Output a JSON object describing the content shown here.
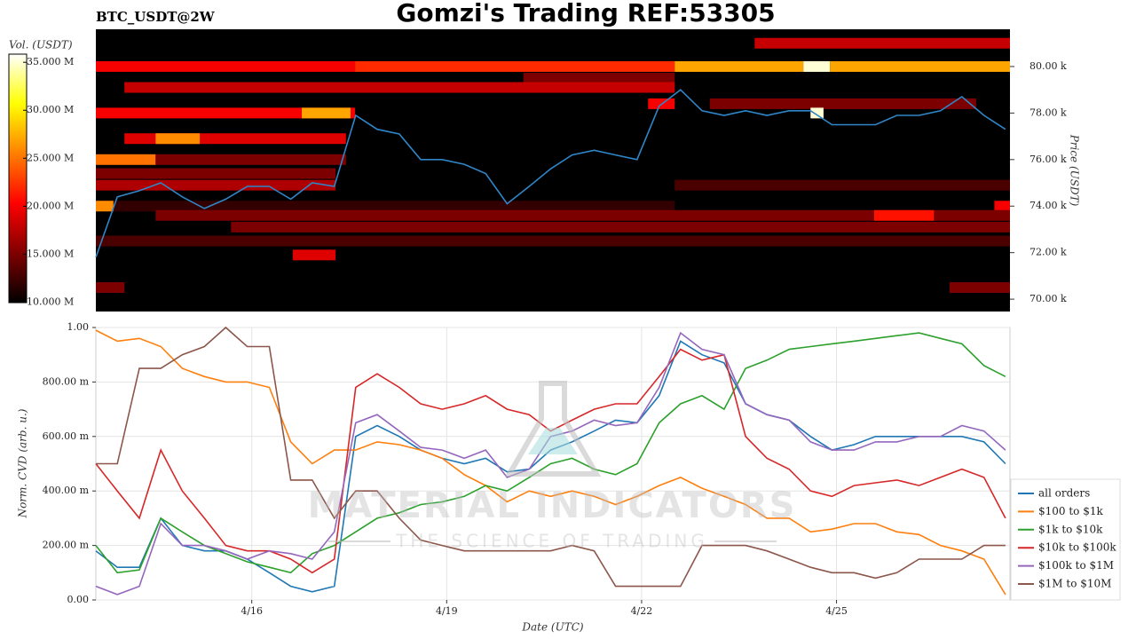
{
  "title": "Gomzi's Trading REF:53305",
  "watermark": {
    "title": "MATERIAL INDICATORS",
    "subtitle": "THE SCIENCE OF TRADING"
  },
  "chart_data": [
    {
      "type": "heatmap",
      "subtitle": "BTC_USDT@2W",
      "colorbar_label": "Vol. (USDT)",
      "ylabel": "Price (USDT)",
      "clim": [
        9950000,
        35850000
      ],
      "cticks": [
        {
          "value": 10000000,
          "label": "10.000 M"
        },
        {
          "value": 15000000,
          "label": "15.000 M"
        },
        {
          "value": 20000000,
          "label": "20.000 M"
        },
        {
          "value": 25000000,
          "label": "25.000 M"
        },
        {
          "value": 30000000,
          "label": "30.000 M"
        },
        {
          "value": 35000000,
          "label": "35.000 M"
        }
      ],
      "ylim": [
        69470,
        81600
      ],
      "yticks": [
        {
          "value": 70000,
          "label": "70.00 k"
        },
        {
          "value": 72000,
          "label": "72.00 k"
        },
        {
          "value": 74000,
          "label": "74.00 k"
        },
        {
          "value": 76000,
          "label": "76.00 k"
        },
        {
          "value": 78000,
          "label": "78.00 k"
        },
        {
          "value": 80000,
          "label": "80.00 k"
        }
      ],
      "xlim": [
        13.6,
        27.67
      ],
      "bands": [
        {
          "price": 80000,
          "x0": 13.6,
          "x1": 17.59,
          "value": 20000000
        },
        {
          "price": 80000,
          "x0": 17.59,
          "x1": 22.51,
          "value": 22000000
        },
        {
          "price": 80000,
          "x0": 22.51,
          "x1": 24.49,
          "value": 27000000
        },
        {
          "price": 80000,
          "x0": 24.49,
          "x1": 24.9,
          "value": 35000000
        },
        {
          "price": 80000,
          "x0": 24.9,
          "x1": 27.67,
          "value": 27000000
        },
        {
          "price": 81000,
          "x0": 23.74,
          "x1": 27.67,
          "value": 18000000
        },
        {
          "price": 79500,
          "x0": 20.18,
          "x1": 22.51,
          "value": 15000000
        },
        {
          "price": 79100,
          "x0": 14.04,
          "x1": 22.51,
          "value": 18000000
        },
        {
          "price": 78400,
          "x0": 22.1,
          "x1": 22.51,
          "value": 20000000
        },
        {
          "price": 78400,
          "x0": 23.05,
          "x1": 27.15,
          "value": 15000000
        },
        {
          "price": 78000,
          "x0": 13.6,
          "x1": 17.59,
          "value": 20000000
        },
        {
          "price": 78000,
          "x0": 16.77,
          "x1": 17.52,
          "value": 27000000
        },
        {
          "price": 78000,
          "x0": 24.6,
          "x1": 24.8,
          "value": 35000000
        },
        {
          "price": 76900,
          "x0": 14.04,
          "x1": 17.45,
          "value": 19000000
        },
        {
          "price": 76900,
          "x0": 14.52,
          "x1": 15.2,
          "value": 26000000
        },
        {
          "price": 76000,
          "x0": 13.6,
          "x1": 14.52,
          "value": 25000000
        },
        {
          "price": 76000,
          "x0": 14.52,
          "x1": 17.45,
          "value": 15000000
        },
        {
          "price": 75400,
          "x0": 13.6,
          "x1": 17.29,
          "value": 15000000
        },
        {
          "price": 74900,
          "x0": 13.6,
          "x1": 17.29,
          "value": 17000000
        },
        {
          "price": 74900,
          "x0": 22.51,
          "x1": 27.67,
          "value": 13000000
        },
        {
          "price": 74000,
          "x0": 13.6,
          "x1": 22.51,
          "value": 12000000
        },
        {
          "price": 74000,
          "x0": 13.6,
          "x1": 13.87,
          "value": 26000000
        },
        {
          "price": 74000,
          "x0": 27.43,
          "x1": 27.67,
          "value": 20000000
        },
        {
          "price": 73600,
          "x0": 14.52,
          "x1": 27.67,
          "value": 15000000
        },
        {
          "price": 73600,
          "x0": 25.58,
          "x1": 26.5,
          "value": 21000000
        },
        {
          "price": 73100,
          "x0": 15.68,
          "x1": 27.67,
          "value": 15000000
        },
        {
          "price": 72500,
          "x0": 13.6,
          "x1": 27.67,
          "value": 13000000
        },
        {
          "price": 71900,
          "x0": 16.63,
          "x1": 17.29,
          "value": 19000000
        },
        {
          "price": 70500,
          "x0": 13.6,
          "x1": 14.04,
          "value": 15000000
        },
        {
          "price": 70500,
          "x0": 26.74,
          "x1": 27.67,
          "value": 15000000
        }
      ],
      "line": {
        "color": "#2f86c8",
        "x": [
          13.6,
          13.93,
          14.27,
          14.6,
          14.93,
          15.27,
          15.6,
          15.93,
          16.27,
          16.6,
          16.93,
          17.27,
          17.6,
          17.93,
          18.27,
          18.6,
          18.93,
          19.27,
          19.6,
          19.93,
          20.27,
          20.6,
          20.93,
          21.27,
          21.6,
          21.93,
          22.27,
          22.6,
          22.93,
          23.27,
          23.6,
          23.93,
          24.27,
          24.6,
          24.93,
          25.27,
          25.6,
          25.93,
          26.27,
          26.6,
          26.93,
          27.27,
          27.6
        ],
        "values": [
          71800,
          74400,
          74660,
          75000,
          74400,
          73900,
          74300,
          74850,
          74850,
          74300,
          75000,
          74850,
          77900,
          77300,
          77100,
          76000,
          76000,
          75800,
          75400,
          74100,
          74850,
          75600,
          76200,
          76400,
          76200,
          76000,
          78300,
          79000,
          78100,
          77900,
          78100,
          77900,
          78100,
          78100,
          77500,
          77500,
          77500,
          77900,
          77900,
          78100,
          78700,
          77900,
          77300
        ]
      }
    },
    {
      "type": "line",
      "ylabel": "Norm. CVD (arb. u.)",
      "xlabel": "Date (UTC)",
      "grid": true,
      "legend": "right",
      "xlim": [
        13.6,
        27.67
      ],
      "xticks": [
        {
          "value": 16,
          "label": "4/16"
        },
        {
          "value": 19,
          "label": "4/19"
        },
        {
          "value": 22,
          "label": "4/22"
        },
        {
          "value": 25,
          "label": "4/25"
        }
      ],
      "ylim": [
        0,
        1
      ],
      "yticks": [
        {
          "value": 0,
          "label": "0.00"
        },
        {
          "value": 0.2,
          "label": "200.00 m"
        },
        {
          "value": 0.4,
          "label": "400.00 m"
        },
        {
          "value": 0.6,
          "label": "600.00 m"
        },
        {
          "value": 0.8,
          "label": "800.00 m"
        },
        {
          "value": 1,
          "label": "1.00"
        }
      ],
      "x": [
        13.6,
        13.93,
        14.27,
        14.6,
        14.93,
        15.27,
        15.6,
        15.93,
        16.27,
        16.6,
        16.93,
        17.27,
        17.6,
        17.93,
        18.27,
        18.6,
        18.93,
        19.27,
        19.6,
        19.93,
        20.27,
        20.6,
        20.93,
        21.27,
        21.6,
        21.93,
        22.27,
        22.6,
        22.93,
        23.27,
        23.6,
        23.93,
        24.27,
        24.6,
        24.93,
        25.27,
        25.6,
        25.93,
        26.27,
        26.6,
        26.93,
        27.27,
        27.6
      ],
      "series": [
        {
          "name": "all orders",
          "color": "#1f77b4",
          "values": [
            0.18,
            0.12,
            0.12,
            0.3,
            0.2,
            0.18,
            0.18,
            0.15,
            0.1,
            0.05,
            0.03,
            0.05,
            0.6,
            0.64,
            0.6,
            0.55,
            0.52,
            0.5,
            0.52,
            0.47,
            0.48,
            0.55,
            0.58,
            0.62,
            0.66,
            0.65,
            0.75,
            0.95,
            0.9,
            0.87,
            0.72,
            0.68,
            0.66,
            0.6,
            0.55,
            0.57,
            0.6,
            0.6,
            0.6,
            0.6,
            0.6,
            0.58,
            0.5
          ]
        },
        {
          "name": "$100 to $1k",
          "color": "#ff7f0e",
          "values": [
            0.99,
            0.95,
            0.96,
            0.93,
            0.85,
            0.82,
            0.8,
            0.8,
            0.78,
            0.58,
            0.5,
            0.55,
            0.55,
            0.58,
            0.57,
            0.55,
            0.52,
            0.46,
            0.42,
            0.36,
            0.4,
            0.38,
            0.4,
            0.38,
            0.35,
            0.38,
            0.42,
            0.45,
            0.41,
            0.38,
            0.35,
            0.3,
            0.3,
            0.25,
            0.26,
            0.28,
            0.28,
            0.25,
            0.24,
            0.2,
            0.18,
            0.15,
            0.02
          ]
        },
        {
          "name": "$1k to $10k",
          "color": "#2ca02c",
          "values": [
            0.2,
            0.1,
            0.11,
            0.3,
            0.25,
            0.2,
            0.17,
            0.14,
            0.12,
            0.1,
            0.17,
            0.2,
            0.25,
            0.3,
            0.32,
            0.35,
            0.36,
            0.38,
            0.42,
            0.4,
            0.45,
            0.5,
            0.52,
            0.48,
            0.46,
            0.5,
            0.65,
            0.72,
            0.75,
            0.7,
            0.85,
            0.88,
            0.92,
            0.93,
            0.94,
            0.95,
            0.96,
            0.97,
            0.98,
            0.96,
            0.94,
            0.86,
            0.82
          ]
        },
        {
          "name": "$10k to $100k",
          "color": "#d62728",
          "values": [
            0.5,
            0.4,
            0.3,
            0.55,
            0.4,
            0.3,
            0.2,
            0.18,
            0.18,
            0.15,
            0.1,
            0.15,
            0.78,
            0.83,
            0.78,
            0.72,
            0.7,
            0.72,
            0.75,
            0.7,
            0.68,
            0.62,
            0.66,
            0.7,
            0.72,
            0.72,
            0.82,
            0.92,
            0.88,
            0.9,
            0.6,
            0.52,
            0.48,
            0.4,
            0.38,
            0.42,
            0.43,
            0.44,
            0.42,
            0.45,
            0.48,
            0.45,
            0.3
          ]
        },
        {
          "name": "$100k to $1M",
          "color": "#9467bd",
          "values": [
            0.05,
            0.02,
            0.05,
            0.28,
            0.2,
            0.2,
            0.18,
            0.15,
            0.18,
            0.17,
            0.15,
            0.25,
            0.65,
            0.68,
            0.62,
            0.56,
            0.55,
            0.52,
            0.55,
            0.45,
            0.48,
            0.6,
            0.62,
            0.66,
            0.64,
            0.65,
            0.78,
            0.98,
            0.92,
            0.9,
            0.72,
            0.68,
            0.66,
            0.58,
            0.55,
            0.55,
            0.58,
            0.58,
            0.6,
            0.6,
            0.64,
            0.62,
            0.55
          ]
        },
        {
          "name": "$1M to $10M",
          "color": "#8c564b",
          "values": [
            0.5,
            0.5,
            0.85,
            0.85,
            0.9,
            0.93,
            1.0,
            0.93,
            0.93,
            0.44,
            0.44,
            0.3,
            0.4,
            0.4,
            0.3,
            0.22,
            0.2,
            0.18,
            0.18,
            0.18,
            0.18,
            0.18,
            0.2,
            0.18,
            0.05,
            0.05,
            0.05,
            0.05,
            0.2,
            0.2,
            0.2,
            0.18,
            0.15,
            0.12,
            0.1,
            0.1,
            0.08,
            0.1,
            0.15,
            0.15,
            0.15,
            0.2,
            0.2
          ]
        }
      ]
    }
  ]
}
